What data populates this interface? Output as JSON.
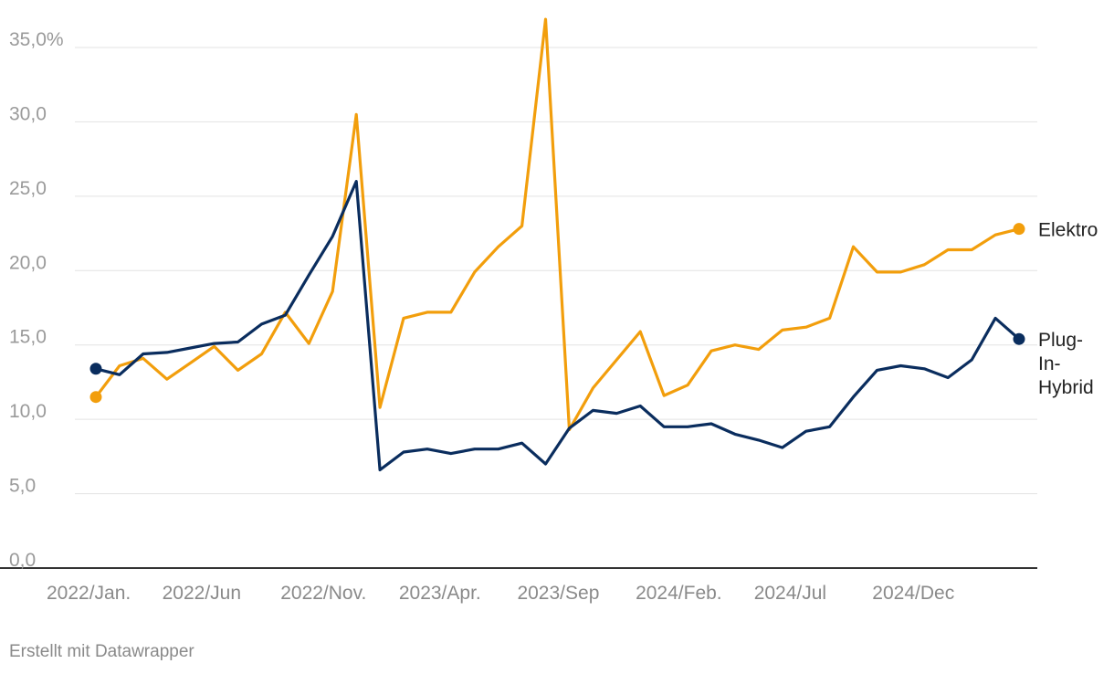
{
  "chart_data": {
    "type": "line",
    "title": "",
    "xlabel": "",
    "ylabel": "",
    "ylim": [
      0,
      35
    ],
    "grid": true,
    "y_ticks": [
      0,
      5,
      10,
      15,
      20,
      25,
      30,
      35
    ],
    "y_tick_labels": [
      "0,0",
      "5,0",
      "10,0",
      "15,0",
      "20,0",
      "25,0",
      "30,0",
      "35,0%"
    ],
    "x_tick_labels": [
      {
        "index": 0,
        "label": "2022/Jan."
      },
      {
        "index": 5,
        "label": "2022/Jun"
      },
      {
        "index": 10,
        "label": "2022/Nov."
      },
      {
        "index": 15,
        "label": "2023/Apr."
      },
      {
        "index": 20,
        "label": "2023/Sep"
      },
      {
        "index": 25,
        "label": "2024/Feb."
      },
      {
        "index": 30,
        "label": "2024/Jul"
      },
      {
        "index": 35,
        "label": "2024/Dec"
      }
    ],
    "x_count": 40,
    "series": [
      {
        "name": "Elektro",
        "label_lines": [
          "Elektro"
        ],
        "color": "#f29e0c",
        "values": [
          11.5,
          13.6,
          14.1,
          12.7,
          13.8,
          14.9,
          13.3,
          14.4,
          17.2,
          15.1,
          18.6,
          30.5,
          10.8,
          16.8,
          17.2,
          17.2,
          19.9,
          21.6,
          23.0,
          36.9,
          9.3,
          12.1,
          14.0,
          15.9,
          11.6,
          12.3,
          14.6,
          15.0,
          14.7,
          16.0,
          16.2,
          16.8,
          21.6,
          19.9,
          19.9,
          20.4,
          21.4,
          21.4,
          22.4,
          22.8
        ]
      },
      {
        "name": "Plug-In-Hybrid",
        "label_lines": [
          "Plug-",
          "In-",
          "Hybrid"
        ],
        "color": "#0a2d5e",
        "values": [
          13.4,
          13.0,
          14.4,
          14.5,
          14.8,
          15.1,
          15.2,
          16.4,
          17.0,
          19.7,
          22.3,
          26.0,
          6.6,
          7.8,
          8.0,
          7.7,
          8.0,
          8.0,
          8.4,
          7.0,
          9.4,
          10.6,
          10.4,
          10.9,
          9.5,
          9.5,
          9.7,
          9.0,
          8.6,
          8.1,
          9.2,
          9.5,
          11.5,
          13.3,
          13.6,
          13.4,
          12.8,
          14.0,
          16.8,
          15.4
        ]
      }
    ]
  },
  "footer": {
    "credit": "Erstellt mit Datawrapper"
  }
}
